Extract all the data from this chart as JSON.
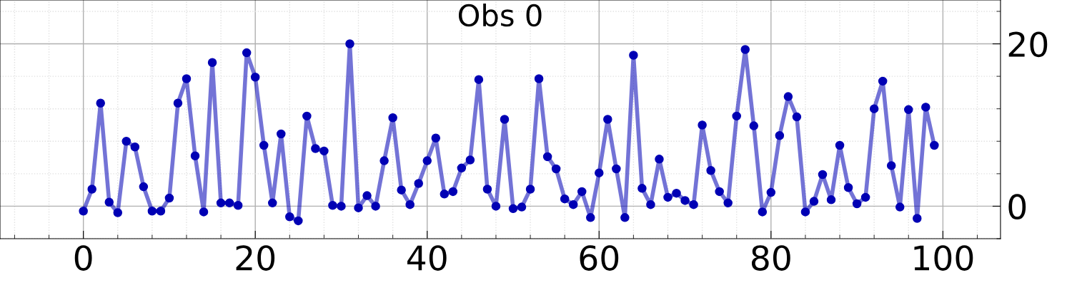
{
  "chart_data": {
    "type": "line",
    "title": "Obs 0",
    "x": [
      0,
      1,
      2,
      3,
      4,
      5,
      6,
      7,
      8,
      9,
      10,
      11,
      12,
      13,
      14,
      15,
      16,
      17,
      18,
      19,
      20,
      21,
      22,
      23,
      24,
      25,
      26,
      27,
      28,
      29,
      30,
      31,
      32,
      33,
      34,
      35,
      36,
      37,
      38,
      39,
      40,
      41,
      42,
      43,
      44,
      45,
      46,
      47,
      48,
      49,
      50,
      51,
      52,
      53,
      54,
      55,
      56,
      57,
      58,
      59,
      60,
      61,
      62,
      63,
      64,
      65,
      66,
      67,
      68,
      69,
      70,
      71,
      72,
      73,
      74,
      75,
      76,
      77,
      78,
      79,
      80,
      81,
      82,
      83,
      84,
      85,
      86,
      87,
      88,
      89,
      90,
      91,
      92,
      93,
      94,
      95,
      96,
      97,
      98,
      99
    ],
    "series": [
      {
        "color": "#0000b4",
        "values": [
          -0.6,
          2.1,
          12.7,
          0.5,
          -0.8,
          8.0,
          7.3,
          2.4,
          -0.6,
          -0.6,
          1.0,
          12.7,
          15.7,
          6.2,
          -0.7,
          17.7,
          0.4,
          0.4,
          0.1,
          18.9,
          15.9,
          7.5,
          0.4,
          8.9,
          -1.3,
          -1.8,
          11.1,
          7.1,
          6.8,
          0.1,
          0.0,
          20.0,
          -0.2,
          1.3,
          0.0,
          5.6,
          10.9,
          2.0,
          0.2,
          2.8,
          5.6,
          8.4,
          1.5,
          1.8,
          4.7,
          5.7,
          15.6,
          2.1,
          0.0,
          10.7,
          -0.3,
          -0.1,
          2.1,
          15.7,
          6.1,
          4.6,
          0.9,
          0.2,
          1.8,
          -1.4,
          4.1,
          10.7,
          4.6,
          -1.4,
          18.6,
          2.2,
          0.2,
          5.8,
          1.1,
          1.6,
          0.7,
          0.2,
          10.0,
          4.4,
          1.8,
          0.4,
          11.1,
          19.3,
          9.9,
          -0.7,
          1.7,
          8.7,
          13.5,
          11.0,
          -0.7,
          0.6,
          3.9,
          0.8,
          7.5,
          2.3,
          0.3,
          1.1,
          12.0,
          15.4,
          5.0,
          -0.1,
          11.9,
          -1.5,
          12.2,
          7.5
        ]
      }
    ],
    "xlim": [
      -9.7,
      106.7
    ],
    "ylim": [
      -4,
      25.4
    ],
    "xticks": [
      0,
      20,
      40,
      60,
      80,
      100
    ],
    "yticks": [
      0,
      20
    ],
    "grid": true,
    "marker": "circle",
    "line_style": "solid"
  }
}
